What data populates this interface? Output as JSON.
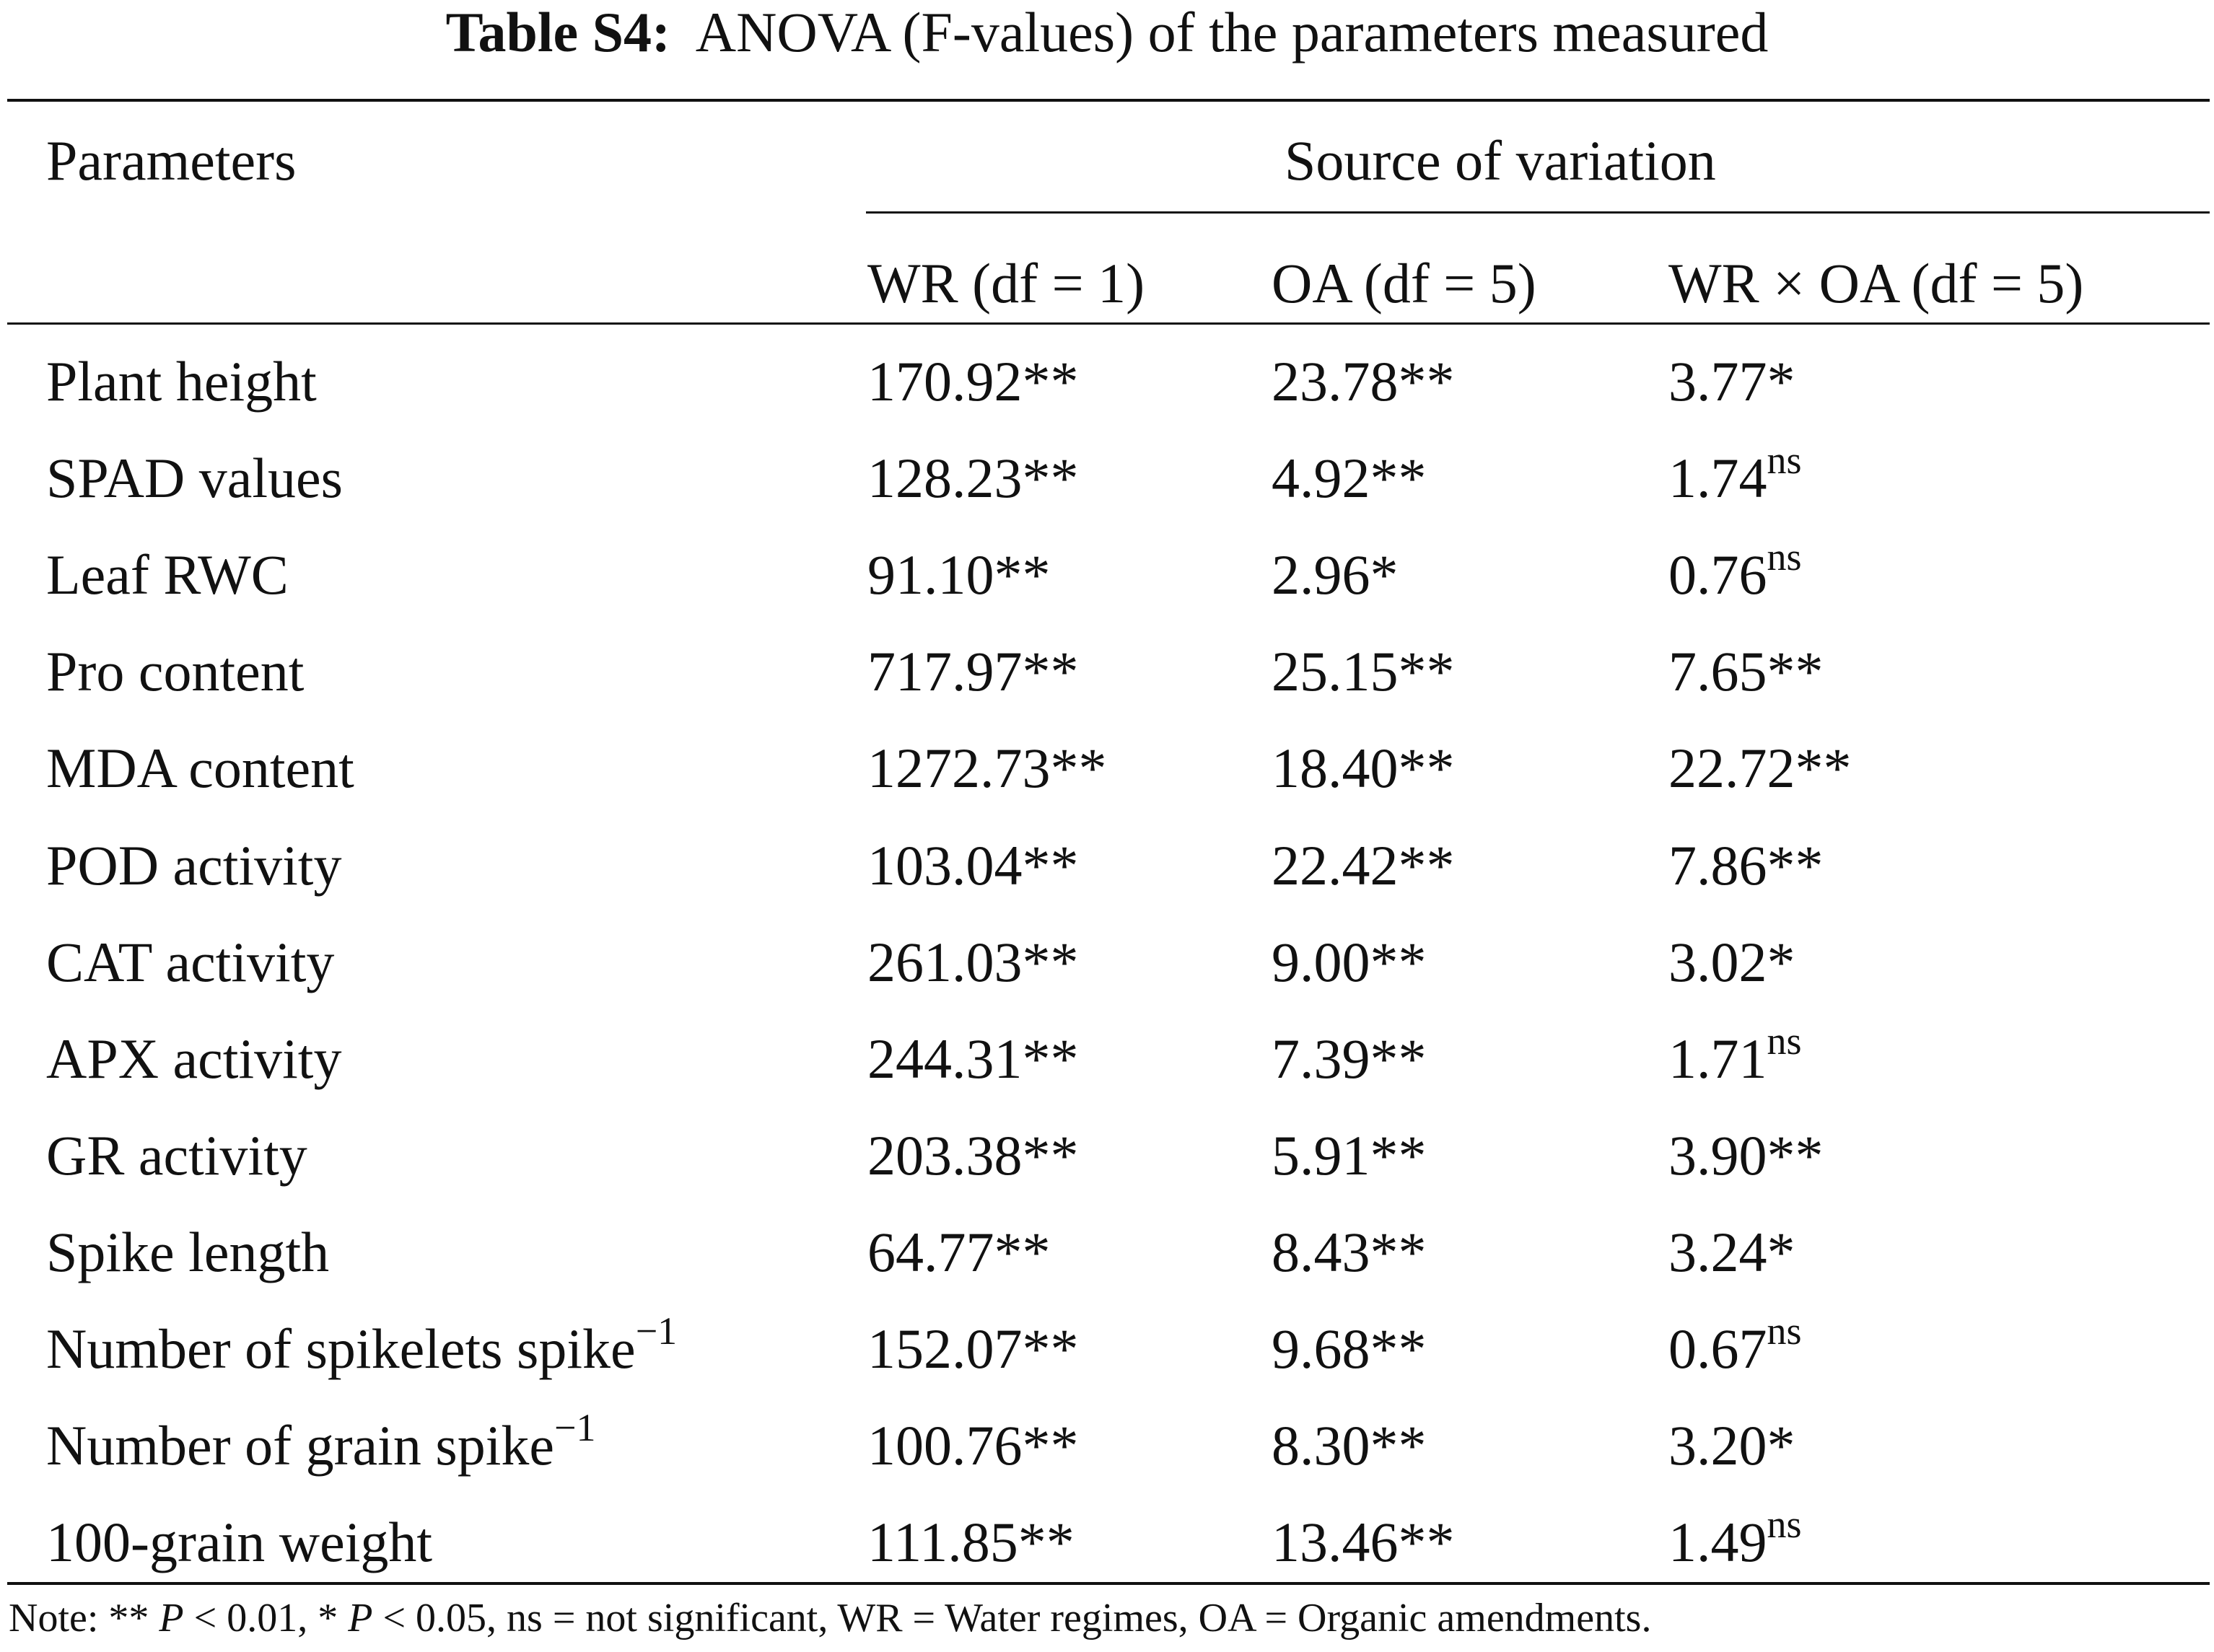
{
  "title": {
    "label": "Table S4:",
    "text": "ANOVA (F-values) of the parameters measured"
  },
  "header": {
    "parameters": "Parameters",
    "source": "Source of variation",
    "wr": "WR (df = 1)",
    "oa": "OA (df = 5)",
    "wrxoa": "WR × OA (df = 5)"
  },
  "rows": [
    {
      "param": "Plant height",
      "param_sup": "",
      "wr": "170.92**",
      "oa": "23.78**",
      "wrxoa": "3.77*",
      "wrxoa_sup": ""
    },
    {
      "param": "SPAD values",
      "param_sup": "",
      "wr": "128.23**",
      "oa": "4.92**",
      "wrxoa": "1.74",
      "wrxoa_sup": "ns"
    },
    {
      "param": "Leaf RWC",
      "param_sup": "",
      "wr": "91.10**",
      "oa": "2.96*",
      "wrxoa": "0.76",
      "wrxoa_sup": "ns"
    },
    {
      "param": "Pro content",
      "param_sup": "",
      "wr": "717.97**",
      "oa": "25.15**",
      "wrxoa": "7.65**",
      "wrxoa_sup": ""
    },
    {
      "param": "MDA content",
      "param_sup": "",
      "wr": "1272.73**",
      "oa": "18.40**",
      "wrxoa": "22.72**",
      "wrxoa_sup": ""
    },
    {
      "param": "POD activity",
      "param_sup": "",
      "wr": "103.04**",
      "oa": "22.42**",
      "wrxoa": "7.86**",
      "wrxoa_sup": ""
    },
    {
      "param": "CAT activity",
      "param_sup": "",
      "wr": "261.03**",
      "oa": "9.00**",
      "wrxoa": "3.02*",
      "wrxoa_sup": ""
    },
    {
      "param": "APX activity",
      "param_sup": "",
      "wr": "244.31**",
      "oa": "7.39**",
      "wrxoa": "1.71",
      "wrxoa_sup": "ns"
    },
    {
      "param": "GR activity",
      "param_sup": "",
      "wr": "203.38**",
      "oa": "5.91**",
      "wrxoa": "3.90**",
      "wrxoa_sup": ""
    },
    {
      "param": "Spike length",
      "param_sup": "",
      "wr": "64.77**",
      "oa": "8.43**",
      "wrxoa": "3.24*",
      "wrxoa_sup": ""
    },
    {
      "param": "Number of spikelets spike",
      "param_sup": "−1",
      "wr": "152.07**",
      "oa": "9.68**",
      "wrxoa": "0.67",
      "wrxoa_sup": "ns"
    },
    {
      "param": "Number of grain spike",
      "param_sup": "−1",
      "wr": "100.76**",
      "oa": "8.30**",
      "wrxoa": "3.20*",
      "wrxoa_sup": ""
    },
    {
      "param": "100-grain weight",
      "param_sup": "",
      "wr": "111.85**",
      "oa": "13.46**",
      "wrxoa": "1.49",
      "wrxoa_sup": "ns"
    }
  ],
  "note": {
    "prefix": "Note: ** ",
    "p1": "P",
    "mid": " < 0.01, * ",
    "p2": "P",
    "suffix": " < 0.05, ns = not significant, WR = Water regimes, OA = Organic amendments."
  }
}
